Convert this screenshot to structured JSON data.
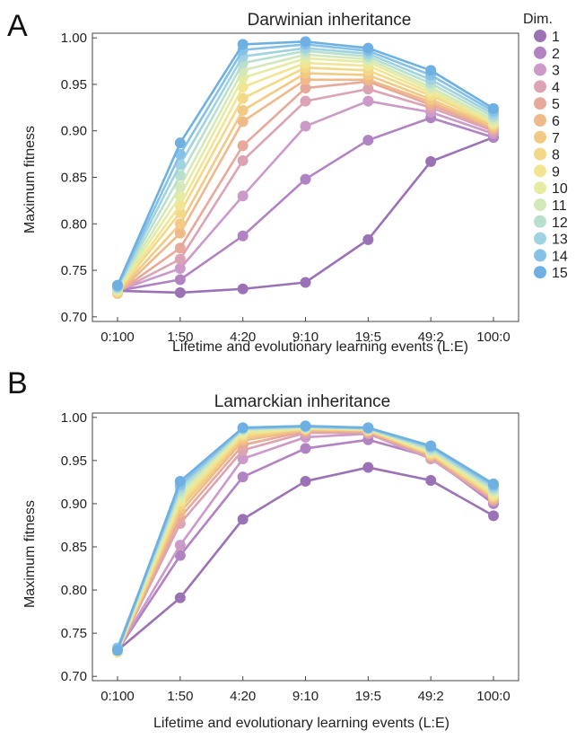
{
  "chart_data": [
    {
      "panel": "A",
      "type": "line",
      "title": "Darwinian inheritance",
      "xlabel": "Lifetime and evolutionary learning events (L:E)",
      "ylabel": "Maximum fitness",
      "categories": [
        "0:100",
        "1:50",
        "4:20",
        "9:10",
        "19:5",
        "49:2",
        "100:0"
      ],
      "ylim": [
        0.695,
        1.005
      ],
      "yticks": [
        0.7,
        0.75,
        0.8,
        0.85,
        0.9,
        0.95,
        1.0
      ],
      "grid": false,
      "legend": "right",
      "series": [
        {
          "name": "1",
          "values": [
            0.728,
            0.726,
            0.73,
            0.737,
            0.783,
            0.867,
            0.893
          ]
        },
        {
          "name": "2",
          "values": [
            0.728,
            0.74,
            0.787,
            0.848,
            0.89,
            0.914,
            0.893
          ]
        },
        {
          "name": "3",
          "values": [
            0.728,
            0.752,
            0.83,
            0.905,
            0.932,
            0.92,
            0.897
          ]
        },
        {
          "name": "4",
          "values": [
            0.727,
            0.762,
            0.868,
            0.932,
            0.945,
            0.925,
            0.9
          ]
        },
        {
          "name": "5",
          "values": [
            0.726,
            0.774,
            0.884,
            0.946,
            0.953,
            0.928,
            0.902
          ]
        },
        {
          "name": "6",
          "values": [
            0.725,
            0.79,
            0.91,
            0.955,
            0.955,
            0.931,
            0.903
          ]
        },
        {
          "name": "7",
          "values": [
            0.726,
            0.8,
            0.922,
            0.962,
            0.96,
            0.934,
            0.905
          ]
        },
        {
          "name": "8",
          "values": [
            0.727,
            0.812,
            0.935,
            0.968,
            0.965,
            0.938,
            0.907
          ]
        },
        {
          "name": "9",
          "values": [
            0.728,
            0.82,
            0.947,
            0.973,
            0.97,
            0.941,
            0.908
          ]
        },
        {
          "name": "10",
          "values": [
            0.729,
            0.83,
            0.957,
            0.978,
            0.974,
            0.944,
            0.91
          ]
        },
        {
          "name": "11",
          "values": [
            0.73,
            0.84,
            0.965,
            0.982,
            0.977,
            0.947,
            0.912
          ]
        },
        {
          "name": "12",
          "values": [
            0.731,
            0.852,
            0.973,
            0.986,
            0.98,
            0.951,
            0.915
          ]
        },
        {
          "name": "13",
          "values": [
            0.732,
            0.864,
            0.98,
            0.989,
            0.983,
            0.955,
            0.918
          ]
        },
        {
          "name": "14",
          "values": [
            0.733,
            0.875,
            0.987,
            0.993,
            0.986,
            0.96,
            0.921
          ]
        },
        {
          "name": "15",
          "values": [
            0.734,
            0.887,
            0.993,
            0.996,
            0.989,
            0.965,
            0.924
          ]
        }
      ]
    },
    {
      "panel": "B",
      "type": "line",
      "title": "Lamarckian inheritance",
      "xlabel": "Lifetime and evolutionary learning events (L:E)",
      "ylabel": "Maximum fitness",
      "categories": [
        "0:100",
        "1:50",
        "4:20",
        "9:10",
        "19:5",
        "49:2",
        "100:0"
      ],
      "ylim": [
        0.695,
        1.005
      ],
      "yticks": [
        0.7,
        0.75,
        0.8,
        0.85,
        0.9,
        0.95,
        1.0
      ],
      "grid": false,
      "series": [
        {
          "name": "1",
          "values": [
            0.73,
            0.791,
            0.882,
            0.926,
            0.942,
            0.927,
            0.886
          ]
        },
        {
          "name": "2",
          "values": [
            0.73,
            0.84,
            0.931,
            0.964,
            0.974,
            0.954,
            0.9
          ]
        },
        {
          "name": "3",
          "values": [
            0.73,
            0.852,
            0.952,
            0.977,
            0.981,
            0.952,
            0.903
          ]
        },
        {
          "name": "4",
          "values": [
            0.729,
            0.877,
            0.962,
            0.982,
            0.982,
            0.953,
            0.904
          ]
        },
        {
          "name": "5",
          "values": [
            0.728,
            0.884,
            0.968,
            0.984,
            0.983,
            0.955,
            0.905
          ]
        },
        {
          "name": "6",
          "values": [
            0.728,
            0.89,
            0.973,
            0.985,
            0.984,
            0.956,
            0.906
          ]
        },
        {
          "name": "7",
          "values": [
            0.728,
            0.895,
            0.976,
            0.986,
            0.985,
            0.957,
            0.908
          ]
        },
        {
          "name": "8",
          "values": [
            0.728,
            0.899,
            0.979,
            0.987,
            0.985,
            0.958,
            0.909
          ]
        },
        {
          "name": "9",
          "values": [
            0.728,
            0.903,
            0.981,
            0.987,
            0.986,
            0.959,
            0.911
          ]
        },
        {
          "name": "10",
          "values": [
            0.729,
            0.907,
            0.983,
            0.988,
            0.986,
            0.96,
            0.913
          ]
        },
        {
          "name": "11",
          "values": [
            0.73,
            0.911,
            0.985,
            0.988,
            0.987,
            0.962,
            0.915
          ]
        },
        {
          "name": "12",
          "values": [
            0.731,
            0.915,
            0.986,
            0.989,
            0.987,
            0.963,
            0.917
          ]
        },
        {
          "name": "13",
          "values": [
            0.732,
            0.919,
            0.987,
            0.989,
            0.987,
            0.965,
            0.919
          ]
        },
        {
          "name": "14",
          "values": [
            0.733,
            0.922,
            0.988,
            0.99,
            0.988,
            0.966,
            0.921
          ]
        },
        {
          "name": "15",
          "values": [
            0.73,
            0.926,
            0.988,
            0.99,
            0.988,
            0.967,
            0.923
          ]
        }
      ]
    }
  ],
  "legend": {
    "title": "Dim.",
    "items": [
      "1",
      "2",
      "3",
      "4",
      "5",
      "6",
      "7",
      "8",
      "9",
      "10",
      "11",
      "12",
      "13",
      "14",
      "15"
    ]
  },
  "colors": [
    "#9b72b5",
    "#b283c2",
    "#cc9ac8",
    "#dca3b4",
    "#e7aa9a",
    "#efb98a",
    "#f2ca83",
    "#f3d987",
    "#f1e593",
    "#e6eba4",
    "#d3e9bc",
    "#b9e0cf",
    "#9fd3e2",
    "#86c1e8",
    "#6fb0e2"
  ]
}
